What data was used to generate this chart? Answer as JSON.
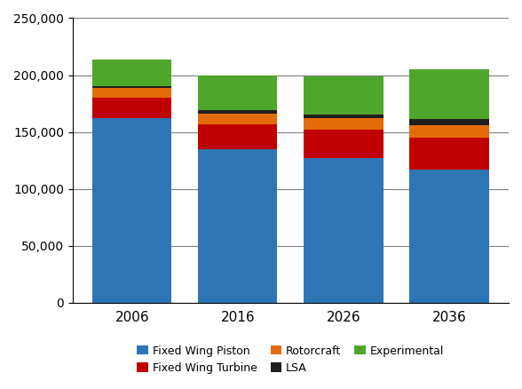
{
  "years": [
    "2006",
    "2016",
    "2026",
    "2036"
  ],
  "categories": [
    "Fixed Wing Piston",
    "Fixed Wing Turbine",
    "Rotorcraft",
    "LSA",
    "Experimental"
  ],
  "values": {
    "Fixed Wing Piston": [
      162000,
      135000,
      127000,
      117000
    ],
    "Fixed Wing Turbine": [
      18000,
      22000,
      25000,
      28000
    ],
    "Rotorcraft": [
      9000,
      9000,
      10000,
      11000
    ],
    "LSA": [
      1000,
      3000,
      3000,
      5000
    ],
    "Experimental": [
      24000,
      31000,
      34000,
      44000
    ]
  },
  "colors": {
    "Fixed Wing Piston": "#2E75B6",
    "Fixed Wing Turbine": "#C00000",
    "Rotorcraft": "#E36C09",
    "LSA": "#1F1F1F",
    "Experimental": "#4EA72A"
  },
  "ylim": [
    0,
    250000
  ],
  "yticks": [
    0,
    50000,
    100000,
    150000,
    200000,
    250000
  ],
  "bar_width": 0.75,
  "figure_bg": "#FFFFFF",
  "axes_bg": "#FFFFFF",
  "grid_color": "#808080",
  "grid_linewidth": 0.8,
  "legend_row1": [
    "Fixed Wing Piston",
    "Fixed Wing Turbine",
    "Rotorcraft"
  ],
  "legend_row2": [
    "LSA",
    "Experimental"
  ]
}
